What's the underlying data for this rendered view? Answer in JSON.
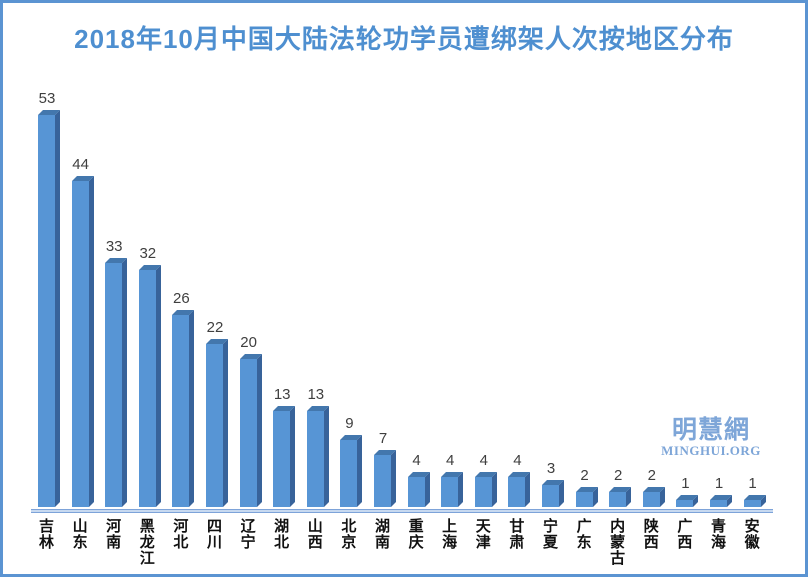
{
  "chart_data": {
    "type": "bar",
    "style": "3d-column",
    "title": "2018年10月中国大陆法轮功学员遭绑架人次按地区分布",
    "categories": [
      "吉林",
      "山东",
      "河南",
      "黑龙江",
      "河北",
      "四川",
      "辽宁",
      "湖北",
      "山西",
      "北京",
      "湖南",
      "重庆",
      "上海",
      "天津",
      "甘肃",
      "宁夏",
      "广东",
      "内蒙古",
      "陕西",
      "广西",
      "青海",
      "安徽"
    ],
    "values": [
      53,
      44,
      33,
      32,
      26,
      22,
      20,
      13,
      13,
      9,
      7,
      4,
      4,
      4,
      4,
      3,
      2,
      2,
      2,
      1,
      1,
      1
    ],
    "xlabel": "",
    "ylabel": "",
    "ylim": [
      0,
      55
    ],
    "grid": false,
    "y_axis_visible": false,
    "legend_position": "none",
    "data_labels": true
  },
  "watermark": {
    "cjk": "明慧網",
    "latin": "MINGHUI.ORG"
  },
  "colors": {
    "border": "#5b94d2",
    "title": "#4e8fd0",
    "bar_face": "#5795d5",
    "bar_side": "#38639a",
    "bar_top": "#4377ad",
    "axis_line": "#7da3d9",
    "axis_fill": "#c7d9f0",
    "value_label": "#3f3f3f",
    "category_label": "#111111",
    "watermark": "#7ea6d8"
  }
}
